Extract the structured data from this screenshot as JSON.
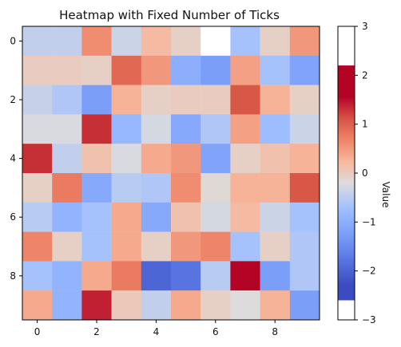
{
  "chart_data": {
    "type": "heatmap",
    "title": "Heatmap with Fixed Number of Ticks",
    "xlabel": "",
    "ylabel": "",
    "x_ticks": [
      "0",
      "2",
      "4",
      "6",
      "8"
    ],
    "y_ticks": [
      "0",
      "2",
      "4",
      "6",
      "8"
    ],
    "x_tick_values": [
      0,
      2,
      4,
      6,
      8
    ],
    "y_tick_values": [
      0,
      2,
      4,
      6,
      8
    ],
    "rows": 10,
    "cols": 10,
    "vmin": -3,
    "vmax": 3,
    "colorbar_ticks": [
      "3",
      "2",
      "1",
      "0",
      "−1",
      "−2",
      "−3"
    ],
    "colorbar_tick_values": [
      3,
      2,
      1,
      0,
      -1,
      -2,
      -3
    ],
    "colorbar_label": "Value",
    "colormap": {
      "stops": [
        {
          "v": -2.6,
          "color": "#3b4cc0"
        },
        {
          "v": -1.95,
          "color": "#5977e3"
        },
        {
          "v": -1.3,
          "color": "#7b9ff9"
        },
        {
          "v": -0.65,
          "color": "#a1c0ff"
        },
        {
          "v": 0.0,
          "color": "#dddcdc"
        },
        {
          "v": 0.55,
          "color": "#f7b89c"
        },
        {
          "v": 1.1,
          "color": "#ee8468"
        },
        {
          "v": 1.65,
          "color": "#d65244"
        },
        {
          "v": 2.2,
          "color": "#b40426"
        }
      ],
      "under": "#ffffff",
      "over": "#ffffff"
    },
    "values": [
      [
        -0.3,
        -0.3,
        1.0,
        -0.2,
        0.5,
        0.2,
        -2.7,
        -0.6,
        0.2,
        0.9
      ],
      [
        0.25,
        0.25,
        0.2,
        1.4,
        0.9,
        -1.0,
        -1.3,
        0.8,
        -0.6,
        -1.2
      ],
      [
        -0.25,
        -0.5,
        -1.3,
        0.6,
        0.2,
        0.25,
        0.25,
        1.6,
        0.6,
        0.2
      ],
      [
        -0.05,
        -0.05,
        1.9,
        -0.8,
        -0.1,
        -1.1,
        -0.5,
        0.8,
        -0.7,
        -0.2
      ],
      [
        1.9,
        -0.3,
        0.4,
        -0.05,
        0.7,
        0.9,
        -1.2,
        0.2,
        0.4,
        0.6
      ],
      [
        0.2,
        1.2,
        -1.1,
        -0.4,
        -0.5,
        1.0,
        0.05,
        0.6,
        0.6,
        1.6
      ],
      [
        -0.4,
        -0.9,
        -0.6,
        0.7,
        -1.1,
        0.4,
        -0.1,
        0.5,
        -0.2,
        -0.6
      ],
      [
        1.1,
        0.2,
        -0.6,
        0.7,
        0.2,
        0.9,
        1.1,
        -0.6,
        0.2,
        -0.5
      ],
      [
        -0.6,
        -0.9,
        0.7,
        1.2,
        -2.2,
        -2.0,
        -0.4,
        2.2,
        -1.3,
        -0.5
      ],
      [
        0.7,
        -0.9,
        2.0,
        0.3,
        -0.3,
        0.7,
        0.2,
        0.0,
        0.6,
        -1.3
      ]
    ]
  }
}
